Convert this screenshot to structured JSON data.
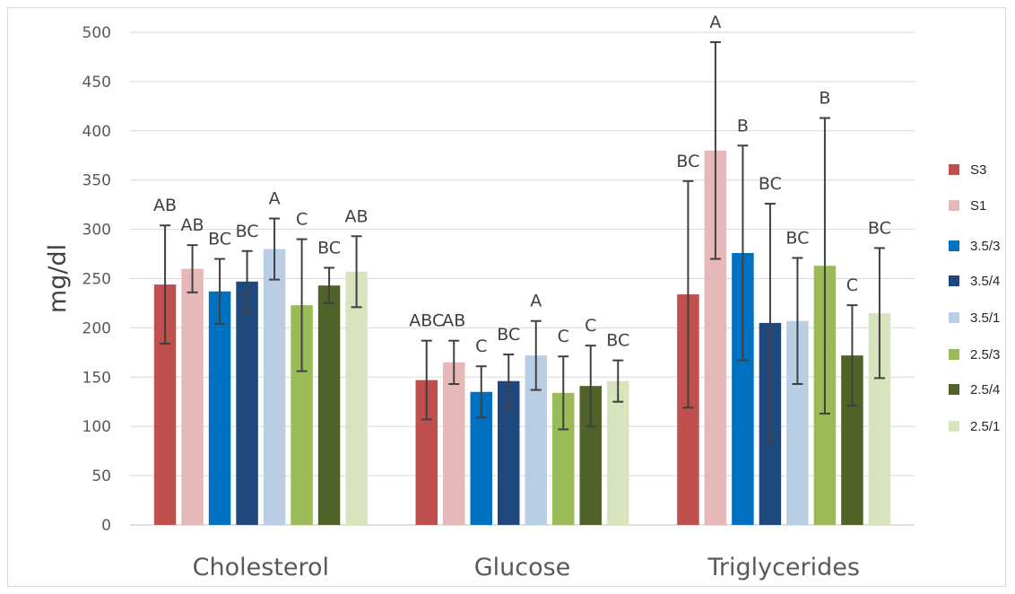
{
  "chart_data": {
    "type": "bar",
    "ylabel": "mg/dl",
    "ylim": [
      0,
      500
    ],
    "yticks": [
      0,
      50,
      100,
      150,
      200,
      250,
      300,
      350,
      400,
      450,
      500
    ],
    "categories": [
      "Cholesterol",
      "Glucose",
      "Triglycerides"
    ],
    "grid": true,
    "legend_position": "right",
    "series": [
      {
        "name": "S3",
        "color": "#c0504d",
        "values": [
          244,
          147,
          234
        ],
        "errors": [
          60,
          40,
          115
        ],
        "labels": [
          "AB",
          "ABC",
          "BC"
        ]
      },
      {
        "name": "S1",
        "color": "#e6b9b8",
        "values": [
          260,
          165,
          380
        ],
        "errors": [
          24,
          22,
          110
        ],
        "labels": [
          "AB",
          "AB",
          "A"
        ]
      },
      {
        "name": "3.5/3",
        "color": "#0070c0",
        "values": [
          237,
          135,
          276
        ],
        "errors": [
          33,
          26,
          109
        ],
        "labels": [
          "BC",
          "C",
          "B"
        ]
      },
      {
        "name": "3.5/4",
        "color": "#1f497d",
        "values": [
          247,
          146,
          205
        ],
        "errors": [
          31,
          27,
          121
        ],
        "labels": [
          "BC",
          "BC",
          "BC"
        ]
      },
      {
        "name": "3.5/1",
        "color": "#b9cde5",
        "values": [
          280,
          172,
          207
        ],
        "errors": [
          31,
          35,
          64
        ],
        "labels": [
          "A",
          "A",
          "BC"
        ]
      },
      {
        "name": "2.5/3",
        "color": "#9bbb59",
        "values": [
          223,
          134,
          263
        ],
        "errors": [
          67,
          37,
          150
        ],
        "labels": [
          "C",
          "C",
          "B"
        ]
      },
      {
        "name": "2.5/4",
        "color": "#4f6228",
        "values": [
          243,
          141,
          172
        ],
        "errors": [
          18,
          41,
          51
        ],
        "labels": [
          "BC",
          "C",
          "C"
        ]
      },
      {
        "name": "2.5/1",
        "color": "#d7e4bc",
        "values": [
          257,
          146,
          215
        ],
        "errors": [
          36,
          21,
          66
        ],
        "labels": [
          "AB",
          "BC",
          "BC"
        ]
      }
    ]
  }
}
